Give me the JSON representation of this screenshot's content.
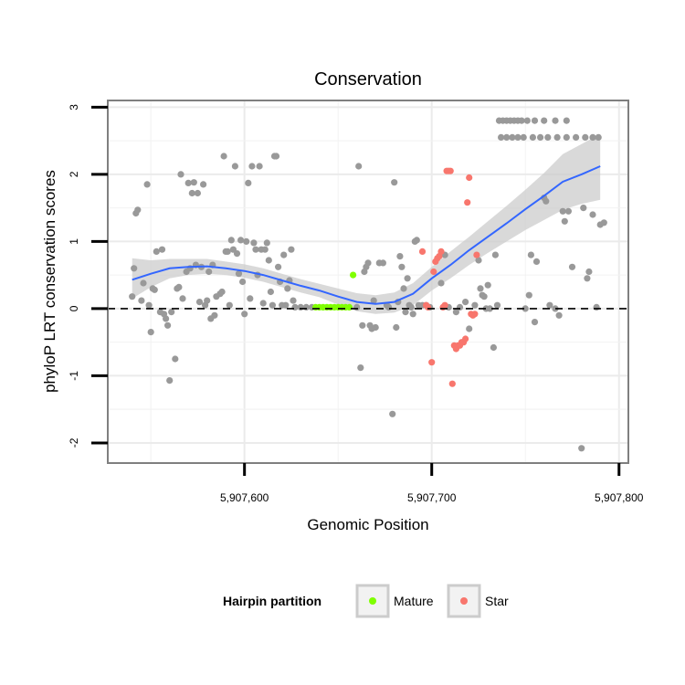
{
  "chart_data": {
    "type": "scatter",
    "title": "Conservation",
    "xlabel": "Genomic Position",
    "ylabel": "phyloP LRT conservation scores",
    "xlim": [
      5907527,
      5907805
    ],
    "ylim": [
      -2.3,
      3.1
    ],
    "x_ticks": [
      {
        "value": 5907600,
        "label": "5,907,600"
      },
      {
        "value": 5907700,
        "label": "5,907,700"
      },
      {
        "value": 5907800,
        "label": "5,907,800"
      }
    ],
    "y_ticks": [
      {
        "value": -2,
        "label": "-2"
      },
      {
        "value": -1,
        "label": "-1"
      },
      {
        "value": 0,
        "label": "0"
      },
      {
        "value": 1,
        "label": "1"
      },
      {
        "value": 2,
        "label": "2"
      },
      {
        "value": 3,
        "label": "3"
      }
    ],
    "grid": true,
    "reference_line": {
      "y": 0,
      "style": "dashed"
    },
    "colors": {
      "other": "#999999",
      "mature": "#7fff00",
      "star": "#f8766d",
      "smooth": "#3366ff",
      "ribbon": "#cccccc"
    },
    "legend": {
      "title": "Hairpin partition",
      "position": "bottom",
      "entries": [
        {
          "label": "Mature",
          "color": "#7fff00"
        },
        {
          "label": "Star",
          "color": "#f8766d"
        }
      ]
    },
    "series": [
      {
        "group": "other",
        "points": [
          [
            5907540,
            0.18
          ],
          [
            5907541,
            0.6
          ],
          [
            5907542,
            1.42
          ],
          [
            5907543,
            1.47
          ],
          [
            5907545,
            0.12
          ],
          [
            5907546,
            0.38
          ],
          [
            5907548,
            1.85
          ],
          [
            5907549,
            0.05
          ],
          [
            5907550,
            -0.35
          ],
          [
            5907551,
            0.3
          ],
          [
            5907552,
            0.28
          ],
          [
            5907553,
            0.85
          ],
          [
            5907555,
            -0.05
          ],
          [
            5907556,
            0.88
          ],
          [
            5907557,
            -0.08
          ],
          [
            5907558,
            -0.15
          ],
          [
            5907559,
            -0.25
          ],
          [
            5907560,
            -1.07
          ],
          [
            5907561,
            -0.05
          ],
          [
            5907563,
            -0.75
          ],
          [
            5907564,
            0.3
          ],
          [
            5907565,
            0.32
          ],
          [
            5907566,
            2.0
          ],
          [
            5907567,
            0.15
          ],
          [
            5907569,
            0.55
          ],
          [
            5907570,
            1.87
          ],
          [
            5907571,
            0.6
          ],
          [
            5907572,
            1.72
          ],
          [
            5907573,
            1.88
          ],
          [
            5907574,
            0.65
          ],
          [
            5907575,
            1.72
          ],
          [
            5907576,
            0.1
          ],
          [
            5907577,
            0.62
          ],
          [
            5907578,
            1.85
          ],
          [
            5907579,
            0.05
          ],
          [
            5907580,
            0.12
          ],
          [
            5907581,
            0.55
          ],
          [
            5907582,
            -0.15
          ],
          [
            5907583,
            0.65
          ],
          [
            5907584,
            -0.1
          ],
          [
            5907585,
            0.18
          ],
          [
            5907587,
            0.22
          ],
          [
            5907588,
            0.25
          ],
          [
            5907589,
            2.27
          ],
          [
            5907590,
            0.85
          ],
          [
            5907591,
            0.85
          ],
          [
            5907592,
            0.05
          ],
          [
            5907593,
            1.02
          ],
          [
            5907594,
            0.88
          ],
          [
            5907595,
            2.12
          ],
          [
            5907596,
            0.82
          ],
          [
            5907597,
            0.52
          ],
          [
            5907598,
            1.02
          ],
          [
            5907599,
            0.4
          ],
          [
            5907600,
            -0.08
          ],
          [
            5907601,
            1.0
          ],
          [
            5907602,
            1.87
          ],
          [
            5907603,
            0.15
          ],
          [
            5907604,
            2.12
          ],
          [
            5907605,
            0.98
          ],
          [
            5907606,
            0.88
          ],
          [
            5907607,
            0.5
          ],
          [
            5907608,
            2.12
          ],
          [
            5907609,
            0.88
          ],
          [
            5907610,
            0.08
          ],
          [
            5907611,
            0.88
          ],
          [
            5907612,
            0.98
          ],
          [
            5907613,
            0.72
          ],
          [
            5907614,
            0.25
          ],
          [
            5907615,
            0.05
          ],
          [
            5907616,
            2.27
          ],
          [
            5907617,
            2.27
          ],
          [
            5907618,
            0.62
          ],
          [
            5907619,
            0.4
          ],
          [
            5907620,
            0.05
          ],
          [
            5907621,
            0.8
          ],
          [
            5907622,
            0.05
          ],
          [
            5907623,
            0.3
          ],
          [
            5907624,
            0.42
          ],
          [
            5907625,
            0.88
          ],
          [
            5907626,
            0.12
          ],
          [
            5907627,
            0.02
          ],
          [
            5907630,
            0.02
          ],
          [
            5907633,
            0.02
          ],
          [
            5907636,
            0.02
          ],
          [
            5907660,
            0.02
          ],
          [
            5907661,
            2.12
          ],
          [
            5907662,
            -0.88
          ],
          [
            5907663,
            -0.25
          ],
          [
            5907664,
            0.55
          ],
          [
            5907665,
            0.62
          ],
          [
            5907666,
            0.68
          ],
          [
            5907667,
            -0.25
          ],
          [
            5907668,
            -0.3
          ],
          [
            5907669,
            0.12
          ],
          [
            5907670,
            -0.28
          ],
          [
            5907672,
            0.68
          ],
          [
            5907674,
            0.68
          ],
          [
            5907676,
            0.05
          ],
          [
            5907677,
            0.02
          ],
          [
            5907679,
            -1.57
          ],
          [
            5907680,
            1.88
          ],
          [
            5907681,
            -0.28
          ],
          [
            5907682,
            0.1
          ],
          [
            5907683,
            0.78
          ],
          [
            5907684,
            0.62
          ],
          [
            5907685,
            0.3
          ],
          [
            5907686,
            -0.05
          ],
          [
            5907687,
            0.45
          ],
          [
            5907688,
            0.05
          ],
          [
            5907689,
            0.02
          ],
          [
            5907690,
            -0.08
          ],
          [
            5907691,
            1.0
          ],
          [
            5907692,
            1.02
          ],
          [
            5907693,
            0.05
          ],
          [
            5907695,
            0.05
          ],
          [
            5907697,
            0.05
          ],
          [
            5907699,
            0.02
          ],
          [
            5907705,
            0.38
          ],
          [
            5907707,
            0.8
          ],
          [
            5907709,
            0.02
          ],
          [
            5907713,
            -0.05
          ],
          [
            5907715,
            0.02
          ],
          [
            5907718,
            0.1
          ],
          [
            5907720,
            -0.3
          ],
          [
            5907723,
            0.05
          ],
          [
            5907725,
            0.72
          ],
          [
            5907726,
            0.3
          ],
          [
            5907727,
            0.2
          ],
          [
            5907728,
            0.18
          ],
          [
            5907729,
            0.0
          ],
          [
            5907730,
            0.35
          ],
          [
            5907731,
            0.0
          ],
          [
            5907733,
            -0.58
          ],
          [
            5907734,
            0.8
          ],
          [
            5907735,
            0.05
          ],
          [
            5907736,
            2.8
          ],
          [
            5907738,
            2.8
          ],
          [
            5907740,
            2.8
          ],
          [
            5907742,
            2.8
          ],
          [
            5907744,
            2.8
          ],
          [
            5907746,
            2.8
          ],
          [
            5907748,
            2.8
          ],
          [
            5907751,
            2.8
          ],
          [
            5907755,
            2.8
          ],
          [
            5907760,
            2.8
          ],
          [
            5907766,
            2.8
          ],
          [
            5907772,
            2.8
          ],
          [
            5907737,
            2.55
          ],
          [
            5907740,
            2.55
          ],
          [
            5907743,
            2.55
          ],
          [
            5907746,
            2.55
          ],
          [
            5907749,
            2.55
          ],
          [
            5907754,
            2.55
          ],
          [
            5907758,
            2.55
          ],
          [
            5907762,
            2.55
          ],
          [
            5907767,
            2.55
          ],
          [
            5907772,
            2.55
          ],
          [
            5907777,
            2.55
          ],
          [
            5907782,
            2.55
          ],
          [
            5907786,
            2.55
          ],
          [
            5907789,
            2.55
          ],
          [
            5907750,
            0.0
          ],
          [
            5907752,
            0.2
          ],
          [
            5907753,
            0.8
          ],
          [
            5907755,
            -0.2
          ],
          [
            5907756,
            0.7
          ],
          [
            5907760,
            1.65
          ],
          [
            5907761,
            1.6
          ],
          [
            5907763,
            0.05
          ],
          [
            5907766,
            0.0
          ],
          [
            5907768,
            -0.1
          ],
          [
            5907770,
            1.45
          ],
          [
            5907771,
            1.3
          ],
          [
            5907773,
            1.45
          ],
          [
            5907775,
            0.62
          ],
          [
            5907780,
            -2.08
          ],
          [
            5907781,
            1.5
          ],
          [
            5907783,
            0.45
          ],
          [
            5907784,
            0.55
          ],
          [
            5907786,
            1.4
          ],
          [
            5907788,
            0.02
          ],
          [
            5907790,
            1.25
          ],
          [
            5907792,
            1.28
          ]
        ]
      },
      {
        "group": "mature",
        "points": [
          [
            5907638,
            0.02
          ],
          [
            5907640,
            0.02
          ],
          [
            5907642,
            0.02
          ],
          [
            5907644,
            0.02
          ],
          [
            5907646,
            0.02
          ],
          [
            5907648,
            0.02
          ],
          [
            5907650,
            0.02
          ],
          [
            5907652,
            0.02
          ],
          [
            5907654,
            0.02
          ],
          [
            5907656,
            0.02
          ],
          [
            5907658,
            0.5
          ]
        ]
      },
      {
        "group": "star",
        "points": [
          [
            5907695,
            0.85
          ],
          [
            5907697,
            0.05
          ],
          [
            5907698,
            0.02
          ],
          [
            5907700,
            -0.8
          ],
          [
            5907701,
            0.55
          ],
          [
            5907702,
            0.7
          ],
          [
            5907703,
            0.75
          ],
          [
            5907704,
            0.78
          ],
          [
            5907705,
            0.85
          ],
          [
            5907706,
            0.02
          ],
          [
            5907707,
            0.05
          ],
          [
            5907708,
            2.05
          ],
          [
            5907709,
            2.05
          ],
          [
            5907710,
            2.05
          ],
          [
            5907711,
            -1.12
          ],
          [
            5907712,
            -0.55
          ],
          [
            5907713,
            -0.6
          ],
          [
            5907714,
            -0.55
          ],
          [
            5907715,
            -0.55
          ],
          [
            5907716,
            -0.5
          ],
          [
            5907717,
            -0.5
          ],
          [
            5907718,
            -0.45
          ],
          [
            5907719,
            1.58
          ],
          [
            5907720,
            1.95
          ],
          [
            5907721,
            -0.08
          ],
          [
            5907722,
            -0.1
          ],
          [
            5907723,
            -0.08
          ],
          [
            5907724,
            0.8
          ]
        ]
      }
    ],
    "smooth": {
      "x": [
        5907540,
        5907550,
        5907560,
        5907570,
        5907580,
        5907590,
        5907600,
        5907610,
        5907620,
        5907630,
        5907640,
        5907650,
        5907660,
        5907670,
        5907680,
        5907690,
        5907700,
        5907710,
        5907720,
        5907730,
        5907740,
        5907750,
        5907760,
        5907770,
        5907780,
        5907790
      ],
      "y": [
        0.43,
        0.52,
        0.6,
        0.62,
        0.63,
        0.6,
        0.56,
        0.5,
        0.42,
        0.34,
        0.27,
        0.18,
        0.1,
        0.07,
        0.1,
        0.22,
        0.45,
        0.65,
        0.87,
        1.07,
        1.27,
        1.48,
        1.68,
        1.89,
        2.0,
        2.12
      ],
      "lo": [
        0.15,
        0.32,
        0.45,
        0.5,
        0.52,
        0.5,
        0.46,
        0.4,
        0.32,
        0.24,
        0.17,
        0.06,
        -0.04,
        -0.08,
        -0.06,
        0.05,
        0.27,
        0.45,
        0.65,
        0.83,
        1.0,
        1.17,
        1.32,
        1.47,
        1.56,
        1.62
      ],
      "hi": [
        0.75,
        0.72,
        0.74,
        0.74,
        0.74,
        0.7,
        0.66,
        0.6,
        0.52,
        0.44,
        0.37,
        0.3,
        0.23,
        0.2,
        0.24,
        0.38,
        0.62,
        0.85,
        1.07,
        1.3,
        1.53,
        1.77,
        2.02,
        2.3,
        2.45,
        2.6
      ]
    }
  }
}
